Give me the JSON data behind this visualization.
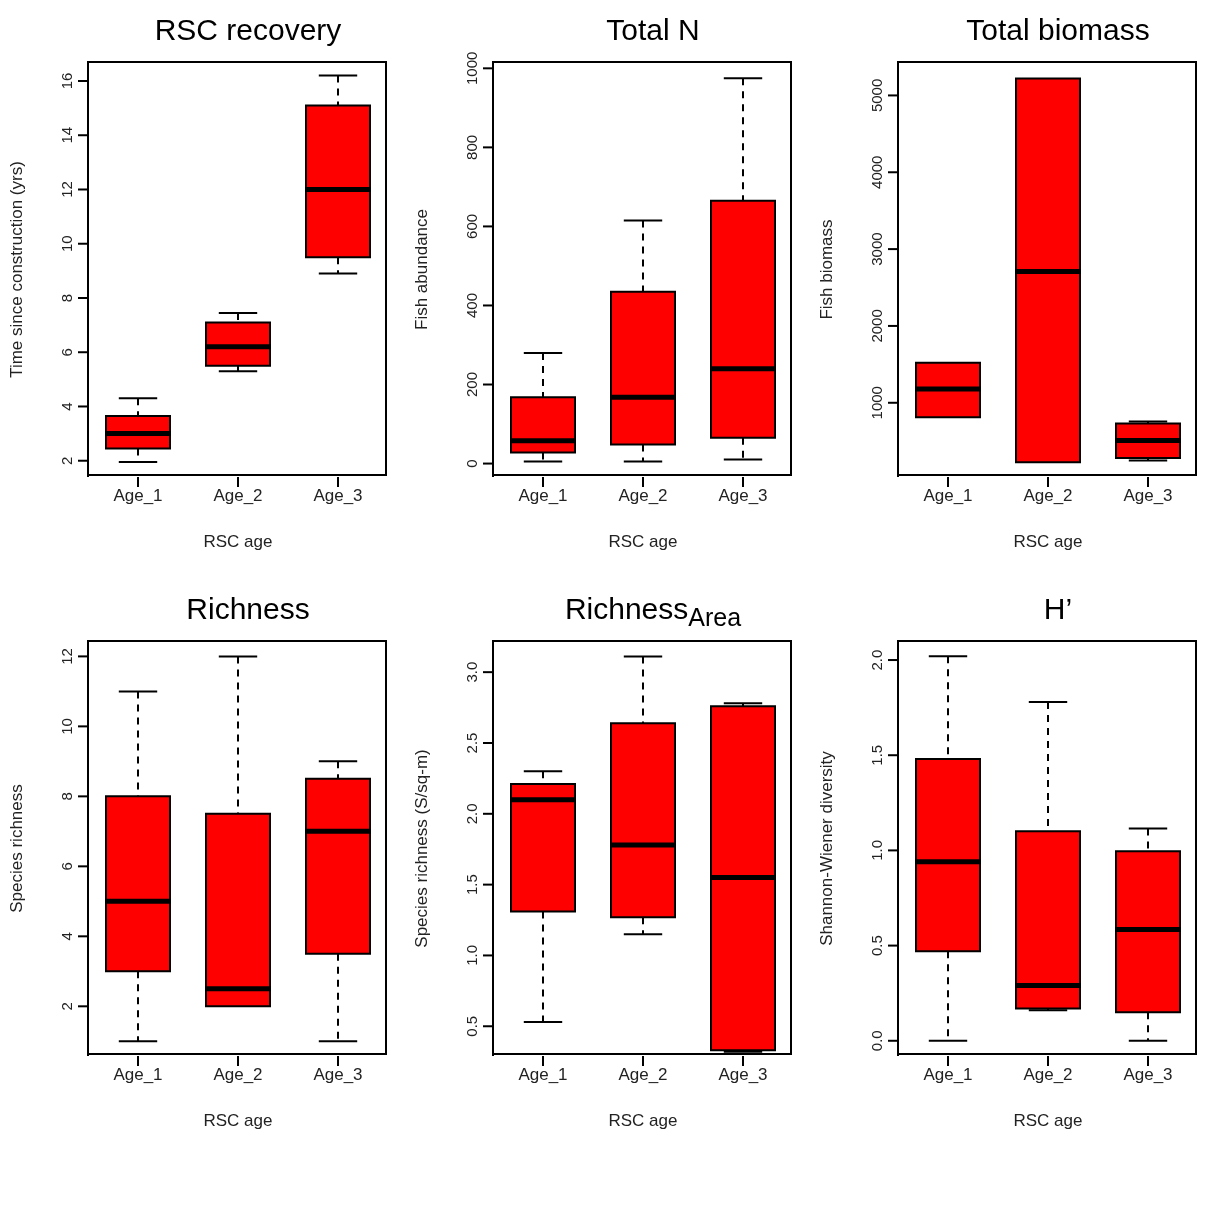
{
  "chart_data": [
    {
      "type": "box",
      "title": "RSC recovery",
      "xlabel": "RSC age",
      "ylabel": "Time since construction (yrs)",
      "categories": [
        "Age_1",
        "Age_2",
        "Age_3"
      ],
      "color": "#ff0000",
      "ylim": [
        1.4,
        16.7
      ],
      "yticks": [
        2,
        4,
        6,
        8,
        10,
        12,
        14,
        16
      ],
      "boxes": [
        {
          "low": 1.95,
          "q1": 2.45,
          "median": 3.0,
          "q3": 3.65,
          "high": 4.3
        },
        {
          "low": 5.3,
          "q1": 5.5,
          "median": 6.2,
          "q3": 7.1,
          "high": 7.45
        },
        {
          "low": 8.9,
          "q1": 9.5,
          "median": 12.0,
          "q3": 15.1,
          "high": 16.2
        }
      ]
    },
    {
      "type": "box",
      "title": "Total N",
      "xlabel": "RSC age",
      "ylabel": "Fish abundance",
      "categories": [
        "Age_1",
        "Age_2",
        "Age_3"
      ],
      "color": "#ff0000",
      "ylim": [
        -34,
        1016
      ],
      "yticks": [
        0,
        200,
        400,
        600,
        800,
        1000
      ],
      "boxes": [
        {
          "low": 5,
          "q1": 28,
          "median": 58,
          "q3": 168,
          "high": 280
        },
        {
          "low": 5,
          "q1": 48,
          "median": 168,
          "q3": 435,
          "high": 615
        },
        {
          "low": 10,
          "q1": 65,
          "median": 240,
          "q3": 665,
          "high": 975
        }
      ]
    },
    {
      "type": "box",
      "title": "Total biomass",
      "xlabel": "RSC age",
      "ylabel": "Fish biomass",
      "categories": [
        "Age_1",
        "Age_2",
        "Age_3"
      ],
      "color": "#ff0000",
      "ylim": [
        34,
        5435
      ],
      "yticks": [
        1000,
        2000,
        3000,
        4000,
        5000
      ],
      "boxes": [
        {
          "low": 810,
          "q1": 810,
          "median": 1180,
          "q3": 1520,
          "high": 1520
        },
        {
          "low": 225,
          "q1": 225,
          "median": 2710,
          "q3": 5220,
          "high": 5220
        },
        {
          "low": 250,
          "q1": 280,
          "median": 510,
          "q3": 730,
          "high": 755
        }
      ]
    },
    {
      "type": "box",
      "title": "Richness",
      "xlabel": "RSC age",
      "ylabel": "Species richness",
      "categories": [
        "Age_1",
        "Age_2",
        "Age_3"
      ],
      "color": "#ff0000",
      "ylim": [
        0.58,
        12.44
      ],
      "yticks": [
        2,
        4,
        6,
        8,
        10,
        12
      ],
      "boxes": [
        {
          "low": 1,
          "q1": 3,
          "median": 5,
          "q3": 8,
          "high": 11
        },
        {
          "low": 2,
          "q1": 2,
          "median": 2.5,
          "q3": 7.5,
          "high": 12
        },
        {
          "low": 1,
          "q1": 3.5,
          "median": 7,
          "q3": 8.5,
          "high": 9
        }
      ]
    },
    {
      "type": "box",
      "title": "Richness$_{Area}$",
      "xlabel": "RSC age",
      "ylabel": "Species richness (S/sq-m)",
      "categories": [
        "Age_1",
        "Age_2",
        "Age_3"
      ],
      "color": "#ff0000",
      "ylim": [
        0.29,
        3.22
      ],
      "yticks": [
        {
          "value": 0.5,
          "label": "0.5"
        },
        {
          "value": 1,
          "label": "1.0"
        },
        {
          "value": 1.5,
          "label": "1.5"
        },
        {
          "value": 2,
          "label": "2.0"
        },
        {
          "value": 2.5,
          "label": "2.5"
        },
        {
          "value": 3,
          "label": "3.0"
        }
      ],
      "boxes": [
        {
          "low": 0.53,
          "q1": 1.31,
          "median": 2.1,
          "q3": 2.21,
          "high": 2.3
        },
        {
          "low": 1.15,
          "q1": 1.27,
          "median": 1.78,
          "q3": 2.64,
          "high": 3.11
        },
        {
          "low": 0.32,
          "q1": 0.33,
          "median": 1.55,
          "q3": 2.76,
          "high": 2.78
        }
      ]
    },
    {
      "type": "box",
      "title": "H’",
      "xlabel": "RSC age",
      "ylabel": "Shannon-Wiener diversity",
      "categories": [
        "Age_1",
        "Age_2",
        "Age_3"
      ],
      "color": "#ff0000",
      "ylim": [
        -0.08,
        2.1
      ],
      "yticks": [
        {
          "value": 0,
          "label": "0.0"
        },
        {
          "value": 0.5,
          "label": "0.5"
        },
        {
          "value": 1,
          "label": "1.0"
        },
        {
          "value": 1.5,
          "label": "1.5"
        },
        {
          "value": 2,
          "label": "2.0"
        }
      ],
      "boxes": [
        {
          "low": 0,
          "q1": 0.47,
          "median": 0.94,
          "q3": 1.48,
          "high": 2.02
        },
        {
          "low": 0.16,
          "q1": 0.17,
          "median": 0.29,
          "q3": 1.1,
          "high": 1.78
        },
        {
          "low": 0,
          "q1": 0.15,
          "median": 0.585,
          "q3": 0.995,
          "high": 1.115
        }
      ]
    }
  ]
}
